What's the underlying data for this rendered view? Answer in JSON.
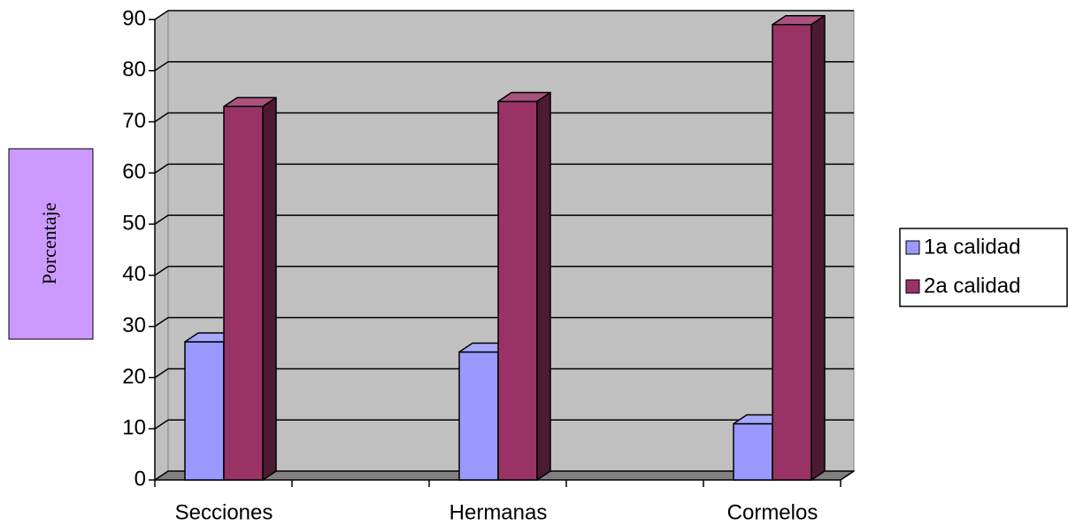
{
  "chart_data": {
    "type": "bar3d",
    "y_label": "Porcentaje",
    "categories": [
      "Secciones",
      "Hermanas",
      "Cormelos"
    ],
    "series": [
      {
        "name": "1a calidad",
        "color": "#9999ff",
        "values": [
          27,
          25,
          11
        ]
      },
      {
        "name": "2a calidad",
        "color": "#993366",
        "values": [
          73,
          74,
          89
        ]
      }
    ],
    "ylim": [
      0,
      90
    ],
    "yticks": [
      0,
      10,
      20,
      30,
      40,
      50,
      60,
      70,
      80,
      90
    ],
    "grid": true,
    "legend": "right"
  }
}
